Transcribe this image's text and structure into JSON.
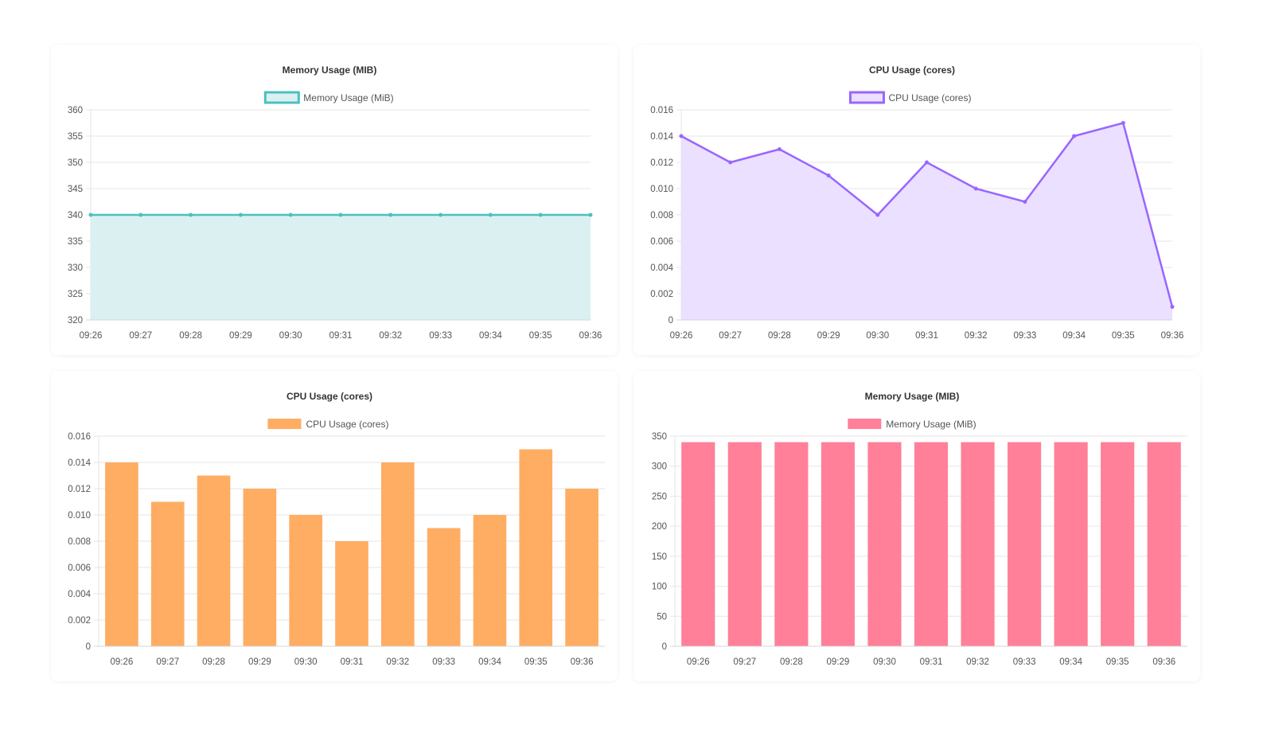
{
  "charts": [
    {
      "type": "line",
      "title": "Memory Usage (MIB)",
      "legend": "Memory Usage (MiB)",
      "color": "#4bc0c0",
      "fill": "#dbf0f1",
      "x": [
        "09:26",
        "09:27",
        "09:28",
        "09:29",
        "09:30",
        "09:31",
        "09:32",
        "09:33",
        "09:34",
        "09:35",
        "09:36"
      ],
      "values": [
        340,
        340,
        340,
        340,
        340,
        340,
        340,
        340,
        340,
        340,
        340
      ],
      "yticks": [
        "360",
        "355",
        "350",
        "345",
        "340",
        "335",
        "330",
        "325",
        "320"
      ],
      "ylim": [
        320,
        360
      ]
    },
    {
      "type": "line",
      "title": "CPU Usage (cores)",
      "legend": "CPU Usage (cores)",
      "color": "#9966ff",
      "fill": "#ebe0ff",
      "x": [
        "09:26",
        "09:27",
        "09:28",
        "09:29",
        "09:30",
        "09:31",
        "09:32",
        "09:33",
        "09:34",
        "09:35",
        "09:36"
      ],
      "values": [
        0.014,
        0.012,
        0.013,
        0.011,
        0.008,
        0.012,
        0.01,
        0.009,
        0.014,
        0.015,
        0.001
      ],
      "yticks": [
        "0.016",
        "0.014",
        "0.012",
        "0.010",
        "0.008",
        "0.006",
        "0.004",
        "0.002",
        "0"
      ],
      "ylim": [
        0,
        0.016
      ]
    },
    {
      "type": "bar",
      "title": "CPU Usage (cores)",
      "legend": "CPU Usage (cores)",
      "color": "#ffad63",
      "x": [
        "09:26",
        "09:27",
        "09:28",
        "09:29",
        "09:30",
        "09:31",
        "09:32",
        "09:33",
        "09:34",
        "09:35",
        "09:36"
      ],
      "values": [
        0.014,
        0.011,
        0.013,
        0.012,
        0.01,
        0.008,
        0.014,
        0.009,
        0.01,
        0.015,
        0.012
      ],
      "yticks": [
        "0.016",
        "0.014",
        "0.012",
        "0.010",
        "0.008",
        "0.006",
        "0.004",
        "0.002",
        "0"
      ],
      "ylim": [
        0,
        0.016
      ]
    },
    {
      "type": "bar",
      "title": "Memory Usage (MIB)",
      "legend": "Memory Usage (MiB)",
      "color": "#ff8098",
      "x": [
        "09:26",
        "09:27",
        "09:28",
        "09:29",
        "09:30",
        "09:31",
        "09:32",
        "09:33",
        "09:34",
        "09:35",
        "09:36"
      ],
      "values": [
        340,
        340,
        340,
        340,
        340,
        340,
        340,
        340,
        340,
        340,
        340
      ],
      "yticks": [
        "350",
        "300",
        "250",
        "200",
        "150",
        "100",
        "50",
        "0"
      ],
      "ylim": [
        0,
        350
      ]
    }
  ],
  "chart_data": [
    {
      "type": "line",
      "title": "Memory Usage (MIB)",
      "legend": [
        "Memory Usage (MiB)"
      ],
      "x": [
        "09:26",
        "09:27",
        "09:28",
        "09:29",
        "09:30",
        "09:31",
        "09:32",
        "09:33",
        "09:34",
        "09:35",
        "09:36"
      ],
      "series": [
        {
          "name": "Memory Usage (MiB)",
          "values": [
            340,
            340,
            340,
            340,
            340,
            340,
            340,
            340,
            340,
            340,
            340
          ]
        }
      ],
      "ylim": [
        320,
        360
      ],
      "grid": true,
      "legend_position": "top"
    },
    {
      "type": "line",
      "title": "CPU Usage (cores)",
      "legend": [
        "CPU Usage (cores)"
      ],
      "x": [
        "09:26",
        "09:27",
        "09:28",
        "09:29",
        "09:30",
        "09:31",
        "09:32",
        "09:33",
        "09:34",
        "09:35",
        "09:36"
      ],
      "series": [
        {
          "name": "CPU Usage (cores)",
          "values": [
            0.014,
            0.012,
            0.013,
            0.011,
            0.008,
            0.012,
            0.01,
            0.009,
            0.014,
            0.015,
            0.001
          ]
        }
      ],
      "ylim": [
        0,
        0.016
      ],
      "grid": true,
      "legend_position": "top"
    },
    {
      "type": "bar",
      "title": "CPU Usage (cores)",
      "legend": [
        "CPU Usage (cores)"
      ],
      "categories": [
        "09:26",
        "09:27",
        "09:28",
        "09:29",
        "09:30",
        "09:31",
        "09:32",
        "09:33",
        "09:34",
        "09:35",
        "09:36"
      ],
      "values": [
        0.014,
        0.011,
        0.013,
        0.012,
        0.01,
        0.008,
        0.014,
        0.009,
        0.01,
        0.015,
        0.012
      ],
      "ylim": [
        0,
        0.016
      ],
      "grid": true,
      "legend_position": "top"
    },
    {
      "type": "bar",
      "title": "Memory Usage (MIB)",
      "legend": [
        "Memory Usage (MiB)"
      ],
      "categories": [
        "09:26",
        "09:27",
        "09:28",
        "09:29",
        "09:30",
        "09:31",
        "09:32",
        "09:33",
        "09:34",
        "09:35",
        "09:36"
      ],
      "values": [
        340,
        340,
        340,
        340,
        340,
        340,
        340,
        340,
        340,
        340,
        340
      ],
      "ylim": [
        0,
        350
      ],
      "grid": true,
      "legend_position": "top"
    }
  ]
}
